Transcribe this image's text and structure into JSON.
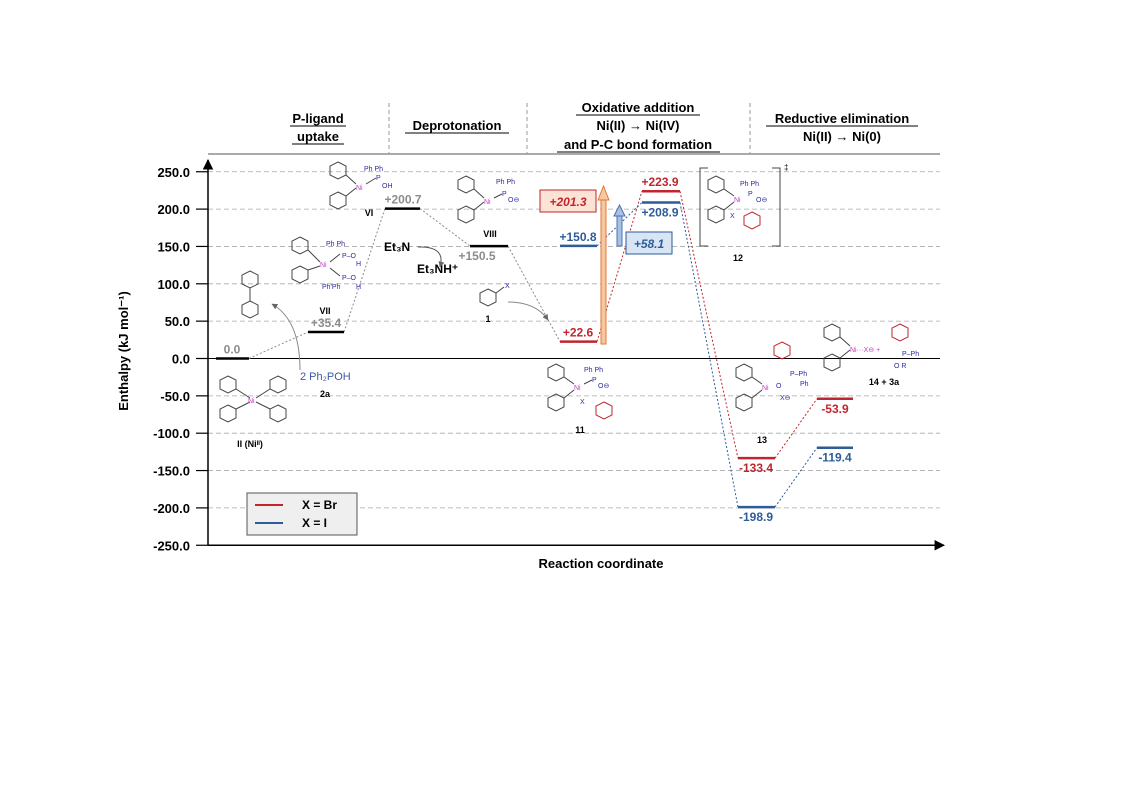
{
  "chart_data": {
    "type": "energy-profile",
    "xlabel": "Reaction coordinate",
    "ylabel": "Enthalpy (kJ mol⁻¹)",
    "ylim": [
      -250,
      250
    ],
    "yticks": [
      "250.0",
      "200.0",
      "150.0",
      "100.0",
      "50.0",
      "0.0",
      "-50.0",
      "-100.0",
      "-150.0",
      "-200.0",
      "-250.0"
    ],
    "grid": true,
    "legend_position": "bottom-left",
    "colors": {
      "common": "#000000",
      "br": "#c0262d",
      "i": "#2e5c99",
      "gray": "#8c8c8c",
      "compound": "#2a2a9a",
      "nickel": "#c23ac2",
      "barrier_br": "#f0a070",
      "barrier_i": "#7fa0d0"
    },
    "sections": [
      {
        "lines": [
          "P-ligand",
          "uptake"
        ]
      },
      {
        "lines": [
          "Deprotonation"
        ]
      },
      {
        "lines": [
          "Oxidative addition",
          "Ni(II) → Ni(IV)",
          "and P-C bond formation"
        ]
      },
      {
        "lines": [
          "Reductive elimination",
          "Ni(II) → Ni(0)"
        ]
      }
    ],
    "series": [
      {
        "name": "X = Br",
        "values": [
          {
            "label": "0.0",
            "y": 0.0
          },
          {
            "label": "+35.4",
            "y": 35.4
          },
          {
            "label": "+200.7",
            "y": 200.7
          },
          {
            "label": "+150.5",
            "y": 150.5
          },
          {
            "label": "+22.6",
            "y": 22.6
          },
          {
            "label": "+223.9",
            "y": 223.9
          },
          {
            "label": "-133.4",
            "y": -133.4
          },
          {
            "label": "-53.9",
            "y": -53.9
          }
        ]
      },
      {
        "name": "X = I",
        "values": [
          {
            "label": "+150.8",
            "y": 150.8
          },
          {
            "label": "+208.9",
            "y": 208.9
          },
          {
            "label": "-198.9",
            "y": -198.9
          },
          {
            "label": "-119.4",
            "y": -119.4
          }
        ]
      }
    ],
    "barriers": [
      {
        "label": "+201.3",
        "value": 201.3
      },
      {
        "label": "+58.1",
        "value": 58.1
      }
    ],
    "compounds": [
      "II (Niᴵᴵ)",
      "2 Ph₂POH",
      "2a",
      "VII",
      "VI",
      "VIII",
      "1",
      "11",
      "12",
      "‡",
      "13",
      "14 + 3a"
    ],
    "reagents": {
      "base": "Et₃N",
      "conj_acid": "Et₃NH⁺"
    },
    "legend": [
      {
        "label": "X = Br"
      },
      {
        "label": "X = I"
      }
    ]
  }
}
